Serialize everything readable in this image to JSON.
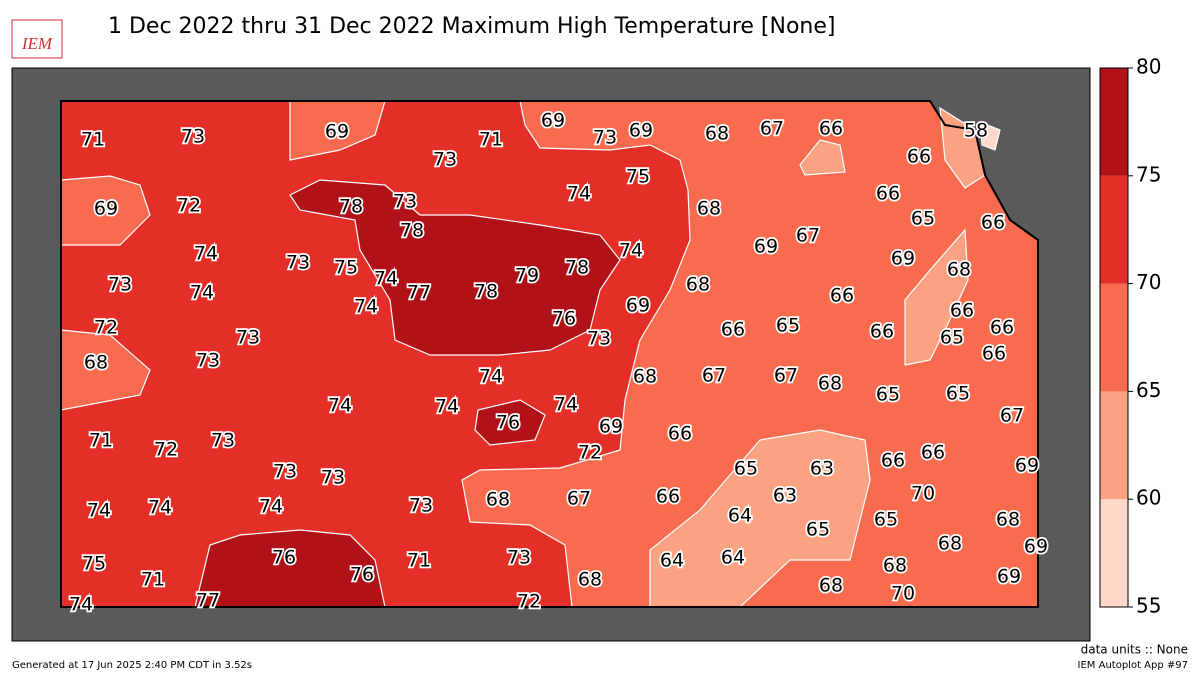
{
  "header": {
    "logo": "IEM",
    "title": "1 Dec 2022 thru 31 Dec 2022 Maximum High Temperature [None]"
  },
  "colorbar": {
    "ticks": [
      55,
      60,
      65,
      70,
      75,
      80
    ],
    "colors": [
      "#fed9c9",
      "#fba283",
      "#f86b4f",
      "#e32f27",
      "#b11218"
    ]
  },
  "stations": [
    71,
    73,
    69,
    73,
    71,
    69,
    73,
    69,
    68,
    67,
    66,
    58,
    66,
    69,
    72,
    78,
    73,
    78,
    74,
    75,
    68,
    66,
    65,
    66,
    74,
    73,
    75,
    74,
    79,
    78,
    74,
    69,
    67,
    69,
    68,
    73,
    74,
    77,
    78,
    74,
    76,
    69,
    68,
    66,
    72,
    73,
    73,
    66,
    65,
    66,
    66,
    65,
    66,
    66,
    68,
    73,
    74,
    68,
    67,
    67,
    68,
    65,
    65,
    74,
    74,
    76,
    74,
    69,
    66,
    67,
    71,
    72,
    73,
    72,
    66,
    66,
    69,
    73,
    73,
    65,
    63,
    68,
    67,
    66,
    63,
    70,
    74,
    74,
    74,
    73,
    64,
    65,
    68,
    65,
    68,
    69,
    75,
    76,
    76,
    71,
    73,
    64,
    64,
    69,
    71,
    68,
    68,
    68,
    70,
    74,
    77,
    72
  ],
  "footer": {
    "generated": "Generated at 17 Jun 2025 2:40 PM CDT in 3.52s",
    "units": "data units :: None",
    "app": "IEM Autoplot App #97"
  }
}
